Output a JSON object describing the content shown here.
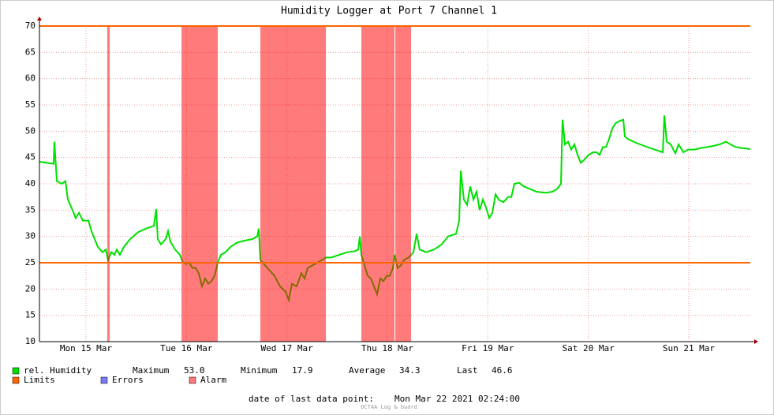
{
  "chart_data": {
    "type": "line",
    "title": "Humidity Logger at Port 7 Channel 1",
    "xlim": [
      15.037,
      22.113
    ],
    "ylim": [
      10,
      70
    ],
    "yticks": [
      10,
      15,
      20,
      25,
      30,
      35,
      40,
      45,
      50,
      55,
      60,
      65,
      70
    ],
    "xticks": [
      {
        "value": 15.5,
        "label": "Mon 15 Mar"
      },
      {
        "value": 16.5,
        "label": "Tue 16 Mar"
      },
      {
        "value": 17.5,
        "label": "Wed 17 Mar"
      },
      {
        "value": 18.5,
        "label": "Thu 18 Mar"
      },
      {
        "value": 19.5,
        "label": "Fri 19 Mar"
      },
      {
        "value": 20.5,
        "label": "Sat 20 Mar"
      },
      {
        "value": 21.5,
        "label": "Sun 21 Mar"
      }
    ],
    "grid": true,
    "series": [
      {
        "name": "rel. Humidity",
        "color": "#00e000",
        "x": [
          15.037,
          15.178,
          15.186,
          15.21,
          15.257,
          15.296,
          15.32,
          15.367,
          15.398,
          15.43,
          15.469,
          15.524,
          15.555,
          15.587,
          15.618,
          15.665,
          15.697,
          15.72,
          15.752,
          15.783,
          15.807,
          15.838,
          15.877,
          15.94,
          16.019,
          16.097,
          16.176,
          16.199,
          16.215,
          16.246,
          16.294,
          16.317,
          16.341,
          16.388,
          16.435,
          16.466,
          16.498,
          16.529,
          16.56,
          16.592,
          16.623,
          16.655,
          16.686,
          16.718,
          16.749,
          16.78,
          16.812,
          16.843,
          16.89,
          16.938,
          17.0,
          17.079,
          17.157,
          17.205,
          17.22,
          17.236,
          17.283,
          17.33,
          17.377,
          17.432,
          17.487,
          17.519,
          17.55,
          17.597,
          17.644,
          17.676,
          17.707,
          17.754,
          17.801,
          17.849,
          17.888,
          17.943,
          18.021,
          18.1,
          18.178,
          18.21,
          18.226,
          18.241,
          18.273,
          18.304,
          18.336,
          18.367,
          18.398,
          18.43,
          18.461,
          18.493,
          18.524,
          18.556,
          18.572,
          18.603,
          18.634,
          18.665,
          18.713,
          18.76,
          18.791,
          18.822,
          18.885,
          18.964,
          19.042,
          19.105,
          19.184,
          19.215,
          19.231,
          19.262,
          19.294,
          19.325,
          19.357,
          19.388,
          19.419,
          19.451,
          19.482,
          19.514,
          19.545,
          19.577,
          19.608,
          19.655,
          19.702,
          19.734,
          19.765,
          19.812,
          19.859,
          19.922,
          19.985,
          20.079,
          20.142,
          20.189,
          20.228,
          20.244,
          20.268,
          20.299,
          20.33,
          20.362,
          20.393,
          20.425,
          20.456,
          20.503,
          20.55,
          20.582,
          20.613,
          20.645,
          20.676,
          20.707,
          20.739,
          20.77,
          20.817,
          20.849,
          20.864,
          20.896,
          20.975,
          21.085,
          21.163,
          21.242,
          21.257,
          21.281,
          21.32,
          21.367,
          21.399,
          21.446,
          21.493,
          21.556,
          21.619,
          21.681,
          21.744,
          21.807,
          21.87,
          21.917,
          21.964,
          22.027,
          22.113
        ],
        "values": [
          44.2,
          43.8,
          48,
          40.5,
          40,
          40.5,
          37,
          35,
          33.5,
          34.5,
          33,
          33,
          31,
          29.5,
          28,
          27,
          27.5,
          25.5,
          27,
          26.5,
          27.5,
          26.5,
          28,
          29.5,
          30.8,
          31.5,
          32,
          35.2,
          29.5,
          28.5,
          29.5,
          31,
          29,
          27.5,
          26.5,
          25,
          24.8,
          25,
          24,
          24,
          23,
          20.5,
          22,
          21,
          21.5,
          22.5,
          25,
          26.5,
          27,
          28,
          28.8,
          29.2,
          29.5,
          30,
          31.5,
          25.5,
          24.5,
          23.5,
          22.5,
          20.5,
          19.5,
          17.9,
          21,
          20.5,
          23,
          22,
          24,
          24.5,
          25,
          25.5,
          26,
          26,
          26.5,
          27,
          27.2,
          27.5,
          30,
          26.5,
          24.5,
          22.5,
          22,
          20.5,
          19,
          22,
          21.5,
          22.5,
          22.5,
          24,
          26.5,
          24,
          24.5,
          25.5,
          26,
          27,
          30.5,
          27.5,
          27,
          27.5,
          28.5,
          30,
          30.5,
          33,
          42.5,
          37,
          36,
          39.5,
          37,
          38.5,
          35,
          37,
          35.5,
          33.5,
          34.5,
          38,
          37,
          36.5,
          37.5,
          37.5,
          40,
          40.2,
          39.5,
          39,
          38.5,
          38.3,
          38.5,
          39,
          40,
          52.2,
          47.5,
          48,
          46.5,
          47.5,
          45.5,
          44,
          44.5,
          45.5,
          46,
          46,
          45.5,
          47,
          47,
          48.5,
          50.5,
          51.5,
          52,
          52.2,
          49,
          48.5,
          47.8,
          47,
          46.5,
          46,
          53.0,
          48,
          47.5,
          45.8,
          47.5,
          46,
          46.5,
          46.5,
          46.8,
          47,
          47.2,
          47.5,
          48,
          47.5,
          47,
          46.8,
          46.6
        ]
      }
    ],
    "stats": [
      {
        "name": "Maximum",
        "value": 53,
        "label": "53.0"
      },
      {
        "name": "Minimum",
        "value": 17.9,
        "label": "17.9"
      },
      {
        "name": "Average",
        "value": 34.3,
        "label": "34.3"
      },
      {
        "name": "Last",
        "value": 46.6,
        "label": "46.6"
      }
    ],
    "limits": {
      "name": "Limits",
      "color": "#ff6600",
      "values": [
        25,
        70
      ]
    },
    "errors": {
      "name": "Errors",
      "color": "#7a7aff"
    },
    "alarm": {
      "name": "Alarm",
      "color": "#ff0000",
      "periods": [
        [
          15.712,
          15.736
        ],
        [
          16.451,
          16.812
        ],
        [
          17.236,
          17.888
        ],
        [
          18.241,
          18.571
        ],
        [
          18.579,
          18.736
        ]
      ]
    },
    "footer_label": "date of last data point:",
    "footer_date": "Mon Mar 22 2021 02:24:00",
    "watermark": "OCTAA Log & Guard"
  }
}
